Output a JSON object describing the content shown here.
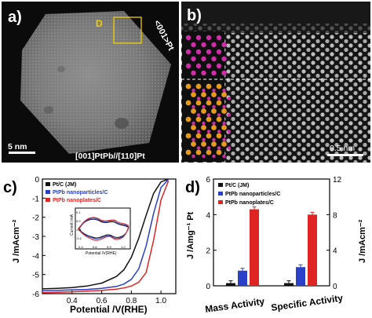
{
  "panel_a": {
    "letter": "a)",
    "box_label": "D",
    "zone_axis": "<001>Pt",
    "scale_bar": "5 nm",
    "caption": "[001]PtPb//[110]Pt"
  },
  "panel_b": {
    "letter": "b)",
    "scale_bar": "0.5 nm"
  },
  "panel_c": {
    "letter": "c)",
    "legend": [
      {
        "label": "Pt/C (JM)",
        "color": "#111111"
      },
      {
        "label": "PtPb nanoparticles/C",
        "color": "#2a40c8"
      },
      {
        "label": "PtPb nanoplates/C",
        "color": "#e02424"
      }
    ],
    "inset": {
      "ylabel": "Current /mA",
      "xlabel": "Potential /V(RHE)",
      "xticks": [
        "0.3",
        "0.6",
        "0.9",
        "1.2"
      ],
      "yticks": [
        "0.1",
        "0.0",
        "-0.1",
        "-0.2"
      ]
    }
  },
  "panel_d": {
    "letter": "d)",
    "legend": [
      {
        "label": "Pt/C (JM)",
        "color": "#111111"
      },
      {
        "label": "PtPb nanoparticles/C",
        "color": "#2a40c8"
      },
      {
        "label": "PtPb nanoplates/C",
        "color": "#e02424"
      }
    ]
  },
  "chart_data": [
    {
      "type": "line",
      "xlabel": "Potential /V(RHE)",
      "ylabel": "J /mAcm⁻²",
      "xlim": [
        0.2,
        1.1
      ],
      "ylim": [
        -6,
        0
      ],
      "xticks": [
        "0.4",
        "0.6",
        "0.8",
        "1.0"
      ],
      "yticks": [
        "0",
        "-1",
        "-2",
        "-3",
        "-4",
        "-5",
        "-6"
      ],
      "series": [
        {
          "name": "Pt/C (JM)",
          "color": "#111111",
          "x": [
            0.2,
            0.3,
            0.4,
            0.5,
            0.6,
            0.7,
            0.75,
            0.8,
            0.85,
            0.9,
            0.95,
            1.0,
            1.05
          ],
          "y": [
            -5.75,
            -5.72,
            -5.68,
            -5.6,
            -5.45,
            -5.1,
            -4.75,
            -4.1,
            -3.1,
            -1.9,
            -0.75,
            -0.15,
            0.0
          ]
        },
        {
          "name": "PtPb nanoparticles/C",
          "color": "#2a40c8",
          "x": [
            0.2,
            0.3,
            0.4,
            0.5,
            0.6,
            0.7,
            0.75,
            0.8,
            0.85,
            0.9,
            0.95,
            1.0,
            1.05
          ],
          "y": [
            -5.85,
            -5.83,
            -5.8,
            -5.78,
            -5.72,
            -5.62,
            -5.5,
            -5.25,
            -4.7,
            -3.5,
            -1.8,
            -0.45,
            -0.02
          ]
        },
        {
          "name": "PtPb nanoplates/C",
          "color": "#e02424",
          "x": [
            0.2,
            0.3,
            0.4,
            0.5,
            0.6,
            0.7,
            0.75,
            0.8,
            0.85,
            0.9,
            0.95,
            1.0,
            1.05
          ],
          "y": [
            -5.95,
            -5.93,
            -5.9,
            -5.87,
            -5.83,
            -5.76,
            -5.7,
            -5.6,
            -5.4,
            -4.9,
            -3.2,
            -1.1,
            -0.1
          ]
        }
      ]
    },
    {
      "type": "bar",
      "categories": [
        "Mass Activity",
        "Specific Activity"
      ],
      "ylabel_left": "J /Amg⁻¹ Pt",
      "ylabel_right": "J /mAcm⁻²",
      "ylim_left": [
        0,
        6
      ],
      "ylim_right": [
        0,
        12
      ],
      "yticks_left": [
        "0",
        "2",
        "4",
        "6"
      ],
      "yticks_right": [
        "0",
        "4",
        "8",
        "12"
      ],
      "series": [
        {
          "name": "Pt/C (JM)",
          "color": "#111111",
          "values": [
            0.15,
            0.3
          ],
          "axis": [
            "left",
            "right"
          ]
        },
        {
          "name": "PtPb nanoparticles/C",
          "color": "#2a40c8",
          "values": [
            0.85,
            2.1
          ],
          "axis": [
            "left",
            "right"
          ]
        },
        {
          "name": "PtPb nanoplates/C",
          "color": "#e02424",
          "values": [
            4.3,
            8.0
          ],
          "axis": [
            "left",
            "right"
          ]
        }
      ]
    }
  ]
}
